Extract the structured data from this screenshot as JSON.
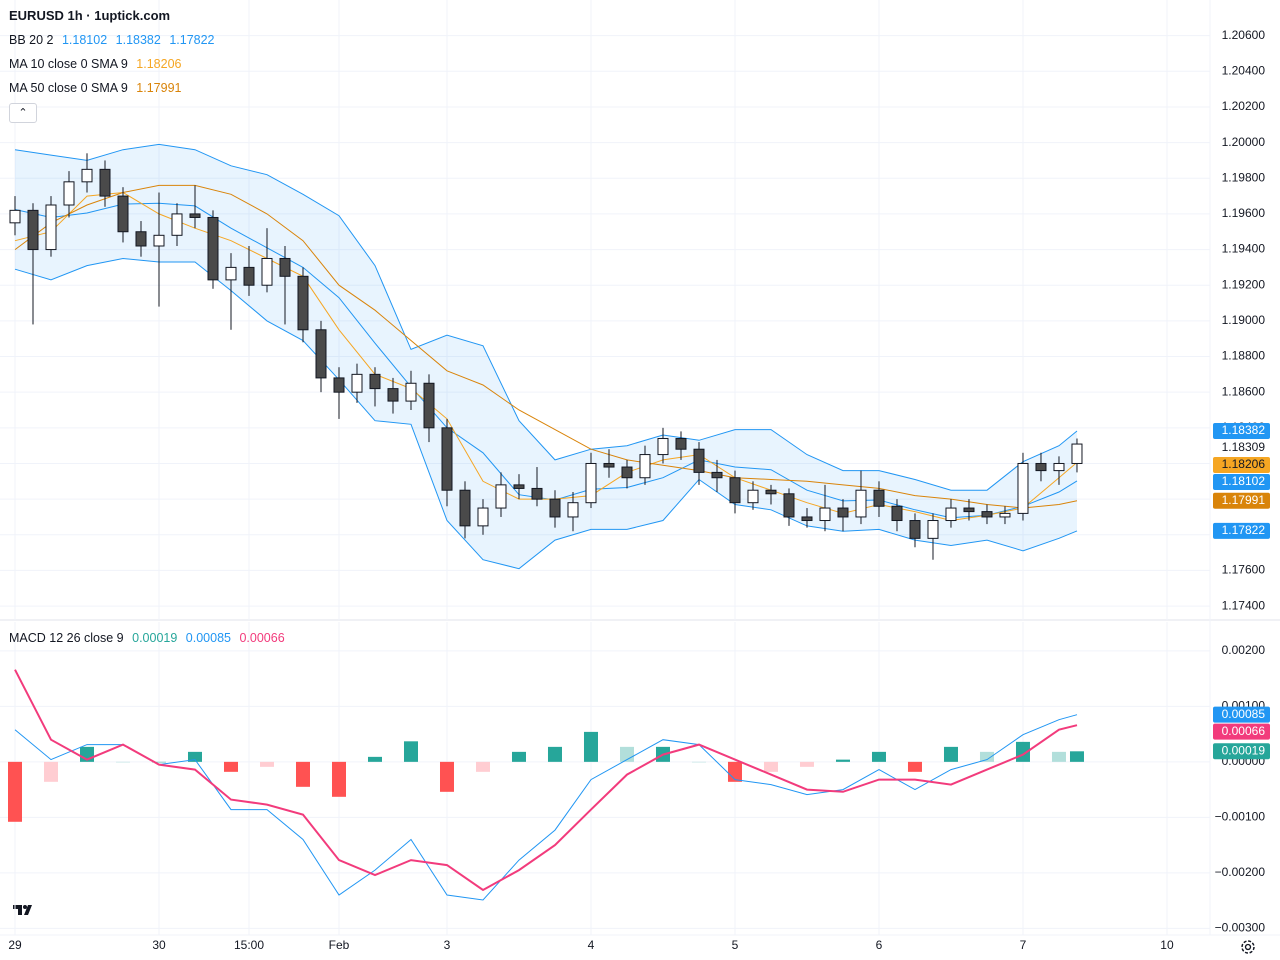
{
  "title": "EURUSD 1h · 1uptick.com",
  "chart_data": [
    {
      "type": "candlestick",
      "xlim": [
        -2.5,
        199.17
      ],
      "ylim": [
        1.1735,
        1.208
      ],
      "yticks": [
        {
          "value": 1.174,
          "label": "1.17400"
        },
        {
          "value": 1.176,
          "label": "1.17600"
        },
        {
          "value": 1.178,
          "label": "1.17800"
        },
        {
          "value": 1.18,
          "label": "1.18000"
        },
        {
          "value": 1.182,
          "label": "1.18200"
        },
        {
          "value": 1.184,
          "label": "1.18400"
        },
        {
          "value": 1.186,
          "label": "1.18600"
        },
        {
          "value": 1.188,
          "label": "1.18800"
        },
        {
          "value": 1.19,
          "label": "1.19000"
        },
        {
          "value": 1.192,
          "label": "1.19200"
        },
        {
          "value": 1.194,
          "label": "1.19400"
        },
        {
          "value": 1.196,
          "label": "1.19600"
        },
        {
          "value": 1.198,
          "label": "1.19800"
        },
        {
          "value": 1.2,
          "label": "1.20000"
        },
        {
          "value": 1.202,
          "label": "1.20200"
        },
        {
          "value": 1.204,
          "label": "1.20400"
        },
        {
          "value": 1.206,
          "label": "1.20600"
        }
      ],
      "grid": true,
      "up_color": "#ffffff",
      "down_color": "#4a4a4a",
      "wick_color": "#131722",
      "x": [
        0,
        3,
        6,
        9,
        12,
        15,
        18,
        21,
        24,
        27,
        30,
        33,
        36,
        39,
        42,
        45,
        48,
        51,
        54,
        57,
        60,
        63,
        66,
        69,
        72,
        75,
        78,
        81,
        84,
        87,
        90,
        93,
        96,
        99,
        102,
        105,
        108,
        111,
        114,
        117,
        120,
        123,
        126,
        129,
        132,
        135,
        138,
        141,
        144,
        147,
        150,
        153,
        156,
        159,
        162,
        165,
        168,
        171,
        174,
        177
      ],
      "open": [
        1.1955,
        1.1962,
        1.194,
        1.1965,
        1.1978,
        1.1985,
        1.197,
        1.195,
        1.1942,
        1.1948,
        1.196,
        1.1958,
        1.1923,
        1.193,
        1.192,
        1.1935,
        1.1925,
        1.1895,
        1.1868,
        1.186,
        1.187,
        1.1862,
        1.1855,
        1.1865,
        1.184,
        1.1805,
        1.1785,
        1.1795,
        1.1808,
        1.1806,
        1.18,
        1.179,
        1.1798,
        1.182,
        1.1818,
        1.1812,
        1.1825,
        1.1834,
        1.1828,
        1.1815,
        1.1812,
        1.1798,
        1.1805,
        1.1803,
        1.179,
        1.1788,
        1.1795,
        1.179,
        1.1805,
        1.1796,
        1.1788,
        1.1778,
        1.1788,
        1.1795,
        1.1793,
        1.179,
        1.1792,
        1.182,
        1.1816,
        1.182
      ],
      "high": [
        1.197,
        1.1966,
        1.197,
        1.1984,
        1.1994,
        1.199,
        1.1975,
        1.1956,
        1.1972,
        1.1966,
        1.1976,
        1.1962,
        1.1938,
        1.1942,
        1.1952,
        1.1942,
        1.193,
        1.19,
        1.1874,
        1.1876,
        1.1874,
        1.1868,
        1.1872,
        1.187,
        1.1845,
        1.181,
        1.18,
        1.1815,
        1.1814,
        1.1818,
        1.1805,
        1.1804,
        1.1826,
        1.1828,
        1.1822,
        1.183,
        1.184,
        1.1838,
        1.1832,
        1.1822,
        1.1816,
        1.181,
        1.1808,
        1.1806,
        1.1795,
        1.1808,
        1.18,
        1.1816,
        1.181,
        1.18,
        1.1792,
        1.1792,
        1.18,
        1.18,
        1.1797,
        1.1796,
        1.1826,
        1.1826,
        1.1824,
        1.1834
      ],
      "low": [
        1.1948,
        1.1898,
        1.1936,
        1.1958,
        1.1972,
        1.1964,
        1.1944,
        1.1936,
        1.1908,
        1.1942,
        1.1952,
        1.1918,
        1.1895,
        1.1914,
        1.1916,
        1.1898,
        1.1888,
        1.186,
        1.1845,
        1.1854,
        1.1852,
        1.1848,
        1.185,
        1.1832,
        1.1796,
        1.1778,
        1.178,
        1.179,
        1.18,
        1.1796,
        1.1784,
        1.1782,
        1.1795,
        1.1812,
        1.1806,
        1.1808,
        1.182,
        1.1822,
        1.1808,
        1.1804,
        1.1792,
        1.1794,
        1.1797,
        1.1785,
        1.1784,
        1.1782,
        1.1782,
        1.1786,
        1.179,
        1.1782,
        1.1773,
        1.1766,
        1.1784,
        1.1788,
        1.1786,
        1.1786,
        1.1788,
        1.181,
        1.1808,
        1.1815
      ],
      "close": [
        1.1962,
        1.194,
        1.1965,
        1.1978,
        1.1985,
        1.197,
        1.195,
        1.1942,
        1.1948,
        1.196,
        1.1958,
        1.1923,
        1.193,
        1.192,
        1.1935,
        1.1925,
        1.1895,
        1.1868,
        1.186,
        1.187,
        1.1862,
        1.1855,
        1.1865,
        1.184,
        1.1805,
        1.1785,
        1.1795,
        1.1808,
        1.1806,
        1.18,
        1.179,
        1.1798,
        1.182,
        1.1818,
        1.1812,
        1.1825,
        1.1834,
        1.1828,
        1.1815,
        1.1812,
        1.1798,
        1.1805,
        1.1803,
        1.179,
        1.1788,
        1.1795,
        1.179,
        1.1805,
        1.1796,
        1.1788,
        1.1778,
        1.1788,
        1.1795,
        1.1793,
        1.179,
        1.1792,
        1.182,
        1.1816,
        1.182,
        1.18309
      ],
      "overlay_x": [
        0,
        6,
        12,
        18,
        24,
        30,
        36,
        42,
        48,
        54,
        60,
        66,
        72,
        78,
        84,
        90,
        96,
        102,
        108,
        114,
        120,
        126,
        132,
        138,
        144,
        150,
        156,
        162,
        168,
        174,
        177
      ],
      "overlays": [
        {
          "name": "BB 20 2",
          "color": "#2196f3",
          "fill": "rgba(33,150,243,0.1)",
          "basis": [
            1.19625,
            1.1958,
            1.19605,
            1.19655,
            1.1966,
            1.19645,
            1.1952,
            1.1941,
            1.193,
            1.1913,
            1.18875,
            1.1863,
            1.184,
            1.1826,
            1.18025,
            1.17995,
            1.18055,
            1.18065,
            1.1812,
            1.1822,
            1.1818,
            1.18165,
            1.1805,
            1.1799,
            1.17995,
            1.1794,
            1.17895,
            1.1791,
            1.1796,
            1.1804,
            1.18102
          ],
          "upper": [
            1.1996,
            1.1993,
            1.199,
            1.1996,
            1.1999,
            1.1996,
            1.1987,
            1.1982,
            1.1971,
            1.1959,
            1.1931,
            1.1884,
            1.1892,
            1.1886,
            1.1844,
            1.1822,
            1.1828,
            1.183,
            1.1836,
            1.1833,
            1.1839,
            1.1839,
            1.1825,
            1.1816,
            1.1816,
            1.1811,
            1.1805,
            1.1805,
            1.1821,
            1.183,
            1.18382
          ],
          "lower": [
            1.1929,
            1.1923,
            1.1931,
            1.1935,
            1.1933,
            1.1933,
            1.1917,
            1.19,
            1.1889,
            1.1867,
            1.1844,
            1.1842,
            1.1788,
            1.1766,
            1.1761,
            1.1777,
            1.1783,
            1.1783,
            1.1788,
            1.1811,
            1.1797,
            1.1794,
            1.1785,
            1.1782,
            1.1783,
            1.1777,
            1.1774,
            1.1777,
            1.1771,
            1.1778,
            1.17822
          ]
        },
        {
          "name": "MA 10 close 0 SMA 9",
          "color": "#f5a623",
          "values": [
            1.1945,
            1.195,
            1.197,
            1.1972,
            1.196,
            1.1952,
            1.1945,
            1.1935,
            1.1925,
            1.1895,
            1.187,
            1.1862,
            1.1845,
            1.181,
            1.18,
            1.18,
            1.1802,
            1.1815,
            1.1822,
            1.1825,
            1.1812,
            1.1805,
            1.1798,
            1.1792,
            1.1797,
            1.1793,
            1.1788,
            1.1791,
            1.1795,
            1.1812,
            1.18206
          ]
        },
        {
          "name": "MA 50 close 0 SMA 9",
          "color": "#d9840a",
          "values": [
            1.194,
            1.1955,
            1.1965,
            1.1972,
            1.1976,
            1.1976,
            1.1971,
            1.196,
            1.1945,
            1.192,
            1.1906,
            1.1889,
            1.1872,
            1.1864,
            1.185,
            1.1839,
            1.1828,
            1.1822,
            1.1819,
            1.1816,
            1.1812,
            1.1811,
            1.181,
            1.1808,
            1.1806,
            1.1802,
            1.18,
            1.1797,
            1.1795,
            1.1797,
            1.17991
          ]
        }
      ]
    },
    {
      "type": "macd",
      "name": "MACD 12 26 close 9",
      "xlim": [
        -2.5,
        199.17
      ],
      "xticks": [
        {
          "value": 0,
          "label": "29"
        },
        {
          "value": 24,
          "label": "30"
        },
        {
          "value": 39,
          "label": "15:00"
        },
        {
          "value": 54,
          "label": "Feb"
        },
        {
          "value": 72,
          "label": "3"
        },
        {
          "value": 96,
          "label": "4"
        },
        {
          "value": 120,
          "label": "5"
        },
        {
          "value": 144,
          "label": "6"
        },
        {
          "value": 168,
          "label": "7"
        },
        {
          "value": 192,
          "label": "10"
        }
      ],
      "ylim": [
        -0.00312,
        0.00252
      ],
      "yticks": [
        {
          "value": -0.003,
          "label": "−0.00300"
        },
        {
          "value": -0.002,
          "label": "−0.00200"
        },
        {
          "value": -0.001,
          "label": "−0.00100"
        },
        {
          "value": 0,
          "label": "0.00000"
        },
        {
          "value": 0.001,
          "label": "0.00100"
        },
        {
          "value": 0.002,
          "label": "0.00200"
        }
      ],
      "grid": true,
      "x": [
        0,
        6,
        12,
        18,
        24,
        30,
        36,
        42,
        48,
        54,
        60,
        66,
        72,
        78,
        84,
        90,
        96,
        102,
        108,
        114,
        120,
        126,
        132,
        138,
        144,
        150,
        156,
        162,
        168,
        174,
        177
      ],
      "histogram": {
        "colors": {
          "pos_up": "#26a69a",
          "pos_down": "#b2dfdb",
          "neg_down": "#ff5252",
          "neg_up": "#ffcdd2"
        },
        "values": [
          -0.00108,
          -0.00036,
          0.00027,
          0,
          0,
          0.00018,
          -0.00018,
          -9e-05,
          -0.00045,
          -0.00063,
          9e-05,
          0.00037,
          -0.00054,
          -0.00018,
          0.00018,
          0.00027,
          0.00054,
          0.00027,
          0.00027,
          0,
          -0.00036,
          -0.00018,
          -9e-05,
          4e-05,
          0.00018,
          -0.00018,
          0.00027,
          0.00018,
          0.00036,
          0.00018,
          0.00019
        ]
      },
      "macd": {
        "color": "#2196f3",
        "values": [
          0.00058,
          4e-05,
          0.00031,
          0.00031,
          -5e-05,
          4e-05,
          -0.00086,
          -0.00086,
          -0.0014,
          -0.0024,
          -0.00195,
          -0.0014,
          -0.0024,
          -0.00249,
          -0.00177,
          -0.00123,
          -0.00032,
          4e-05,
          0.0004,
          0.00031,
          -0.00032,
          -0.00041,
          -0.00059,
          -0.0005,
          -0.00014,
          -0.0005,
          -0.00014,
          4e-05,
          0.00049,
          0.00076,
          0.00085
        ]
      },
      "signal": {
        "color": "#f23b7c",
        "values": [
          0.00166,
          0.0004,
          4e-05,
          0.00031,
          -5e-05,
          -0.00014,
          -0.00068,
          -0.00077,
          -0.00095,
          -0.00177,
          -0.00204,
          -0.00177,
          -0.00186,
          -0.00231,
          -0.00195,
          -0.0015,
          -0.00086,
          -0.00023,
          0.00013,
          0.00031,
          4e-05,
          -0.00023,
          -0.0005,
          -0.00054,
          -0.00032,
          -0.00032,
          -0.00041,
          -0.00014,
          0.00013,
          0.00058,
          0.00066
        ]
      }
    }
  ]
}
